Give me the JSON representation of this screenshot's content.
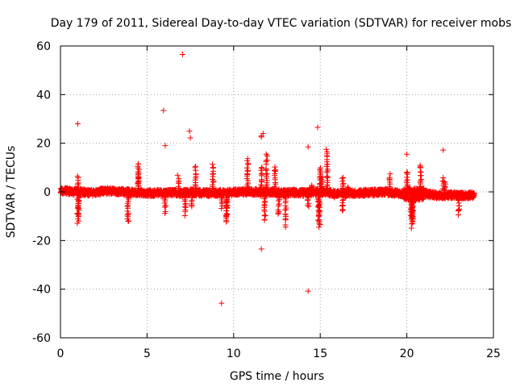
{
  "chart_data": {
    "type": "scatter",
    "title": "Day 179 of 2011, Sidereal Day-to-day VTEC variation (SDTVAR) for receiver mobs",
    "xlabel": "GPS time / hours",
    "ylabel": "SDTVAR / TECUs",
    "xlim": [
      0,
      25
    ],
    "ylim": [
      -60,
      60
    ],
    "xticks": [
      "0",
      "5",
      "10",
      "15",
      "20",
      "25"
    ],
    "yticks": [
      "-60",
      "-40",
      "-20",
      "0",
      "20",
      "40",
      "60"
    ],
    "grid": true,
    "marker": "+",
    "series": [
      {
        "name": "SDTVAR",
        "color": "#ff0000",
        "band": [
          [
            0.0,
            0.5
          ],
          [
            0.5,
            0.2
          ],
          [
            1.0,
            0.0
          ],
          [
            1.5,
            -0.2
          ],
          [
            2.0,
            -0.4
          ],
          [
            2.5,
            0.4
          ],
          [
            3.0,
            0.3
          ],
          [
            3.5,
            0.1
          ],
          [
            4.0,
            -0.2
          ],
          [
            4.5,
            -0.3
          ],
          [
            5.0,
            -0.6
          ],
          [
            5.5,
            -0.4
          ],
          [
            6.0,
            -0.5
          ],
          [
            6.5,
            -0.3
          ],
          [
            7.0,
            -0.4
          ],
          [
            7.5,
            -0.2
          ],
          [
            8.0,
            -0.3
          ],
          [
            8.5,
            -0.5
          ],
          [
            9.0,
            -0.4
          ],
          [
            9.5,
            -0.6
          ],
          [
            10.0,
            -0.2
          ],
          [
            10.5,
            0.0
          ],
          [
            11.0,
            0.1
          ],
          [
            11.5,
            -0.2
          ],
          [
            12.0,
            -0.1
          ],
          [
            12.5,
            -0.2
          ],
          [
            13.0,
            -0.4
          ],
          [
            13.5,
            -0.3
          ],
          [
            14.0,
            -0.5
          ],
          [
            14.5,
            -0.2
          ],
          [
            15.0,
            0.0
          ],
          [
            15.5,
            -0.3
          ],
          [
            16.0,
            -0.8
          ],
          [
            16.5,
            -0.5
          ],
          [
            17.0,
            -0.6
          ],
          [
            17.5,
            -0.4
          ],
          [
            18.0,
            -0.3
          ],
          [
            18.5,
            -0.1
          ],
          [
            19.0,
            -0.2
          ],
          [
            19.5,
            -0.5
          ],
          [
            20.0,
            -0.8
          ],
          [
            20.5,
            -1.0
          ],
          [
            21.0,
            -0.7
          ],
          [
            21.5,
            -1.2
          ],
          [
            22.0,
            -1.5
          ],
          [
            22.5,
            -1.3
          ],
          [
            23.0,
            -1.5
          ],
          [
            23.5,
            -1.4
          ],
          [
            23.9,
            -1.4
          ]
        ],
        "spikes": [
          [
            1.0,
            6.8
          ],
          [
            1.0,
            -13.0
          ],
          [
            1.05,
            -12.0
          ],
          [
            3.9,
            -14.0
          ],
          [
            4.5,
            13.0
          ],
          [
            4.5,
            8.5
          ],
          [
            6.05,
            -9.0
          ],
          [
            6.8,
            7.0
          ],
          [
            7.2,
            -10.0
          ],
          [
            7.6,
            -7.0
          ],
          [
            7.8,
            11.0
          ],
          [
            8.8,
            12.0
          ],
          [
            9.3,
            -7.0
          ],
          [
            9.6,
            -11.0
          ],
          [
            9.6,
            -14.0
          ],
          [
            10.8,
            14.0
          ],
          [
            11.6,
            11.0
          ],
          [
            11.8,
            -13.0
          ],
          [
            11.9,
            17.0
          ],
          [
            12.4,
            11.0
          ],
          [
            12.6,
            -10.0
          ],
          [
            13.0,
            -14.5
          ],
          [
            14.3,
            -6.5
          ],
          [
            14.5,
            3.0
          ],
          [
            14.9,
            -13.0
          ],
          [
            14.95,
            -16.0
          ],
          [
            15.0,
            11.5
          ],
          [
            15.1,
            6.5
          ],
          [
            15.4,
            17.5
          ],
          [
            15.8,
            -2.5
          ],
          [
            16.3,
            6.5
          ],
          [
            16.3,
            -9.0
          ],
          [
            16.6,
            2.0
          ],
          [
            17.6,
            1.0
          ],
          [
            19.0,
            7.5
          ],
          [
            20.0,
            9.0
          ],
          [
            20.25,
            -10.0
          ],
          [
            20.3,
            -13.5
          ],
          [
            20.3,
            -15.5
          ],
          [
            20.35,
            -12.0
          ],
          [
            20.8,
            11.8
          ],
          [
            22.1,
            6.0
          ],
          [
            22.2,
            4.0
          ],
          [
            23.0,
            -10.0
          ]
        ],
        "outliers": [
          [
            7.05,
            56.5
          ],
          [
            5.95,
            33.5
          ],
          [
            1.0,
            28.0
          ],
          [
            14.85,
            26.5
          ],
          [
            7.45,
            25.0
          ],
          [
            11.7,
            24.0
          ],
          [
            11.6,
            23.0
          ],
          [
            7.5,
            22.2
          ],
          [
            6.05,
            19.0
          ],
          [
            14.3,
            18.5
          ],
          [
            15.35,
            17.5
          ],
          [
            22.1,
            17.2
          ],
          [
            20.0,
            15.5
          ],
          [
            11.6,
            22.6
          ],
          [
            9.3,
            -45.8
          ],
          [
            14.3,
            -40.8
          ],
          [
            11.6,
            -23.5
          ]
        ]
      }
    ]
  }
}
